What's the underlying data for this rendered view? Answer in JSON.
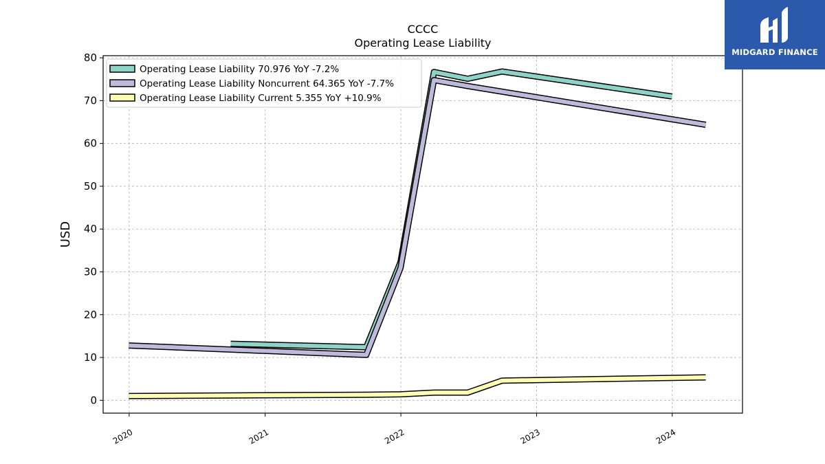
{
  "brand": {
    "name": "MIDGARD FINANCE",
    "color": "#2b5aad"
  },
  "chart_data": {
    "type": "line",
    "title": "CCCC",
    "subtitle": "Operating Lease Liability",
    "xlabel": "",
    "ylabel": "USD",
    "ylim": [
      -3,
      80.5
    ],
    "yticks": [
      0,
      10,
      20,
      30,
      40,
      50,
      60,
      70,
      80
    ],
    "xticks": [
      "2020",
      "2021",
      "2022",
      "2023",
      "2024"
    ],
    "xlim": [
      "2019-10-23",
      "2024-07-08"
    ],
    "grid": true,
    "legend_position": "top-left",
    "series": [
      {
        "name": "Operating Lease Liability",
        "legend_label": "Operating Lease Liability  70.976 YoY -7.2%",
        "color": "#8dd3c7",
        "points": [
          [
            "2020-09-30",
            13.2
          ],
          [
            "2021-09-30",
            12.4
          ],
          [
            "2021-12-31",
            32.3
          ],
          [
            "2022-03-31",
            76.7
          ],
          [
            "2022-06-30",
            75.1
          ],
          [
            "2022-09-30",
            76.8
          ],
          [
            "2023-12-31",
            70.976
          ]
        ]
      },
      {
        "name": "Operating Lease Liability Noncurrent",
        "legend_label": "Operating Lease Liability Noncurrent  64.365 YoY -7.7%",
        "color": "#bebada",
        "points": [
          [
            "2019-12-31",
            12.8
          ],
          [
            "2021-09-30",
            10.6
          ],
          [
            "2021-12-31",
            30.9
          ],
          [
            "2022-03-31",
            74.8
          ],
          [
            "2022-06-30",
            73.4
          ],
          [
            "2024-03-31",
            64.365
          ]
        ]
      },
      {
        "name": "Operating Lease Liability Current",
        "legend_label": "Operating Lease Liability Current  5.355 YoY +10.9%",
        "color": "#ffffb3",
        "points": [
          [
            "2019-12-31",
            1.0
          ],
          [
            "2021-09-30",
            1.3
          ],
          [
            "2021-12-31",
            1.4
          ],
          [
            "2022-03-31",
            1.8
          ],
          [
            "2022-06-30",
            1.8
          ],
          [
            "2022-09-30",
            4.6
          ],
          [
            "2024-03-31",
            5.355
          ]
        ]
      }
    ]
  }
}
